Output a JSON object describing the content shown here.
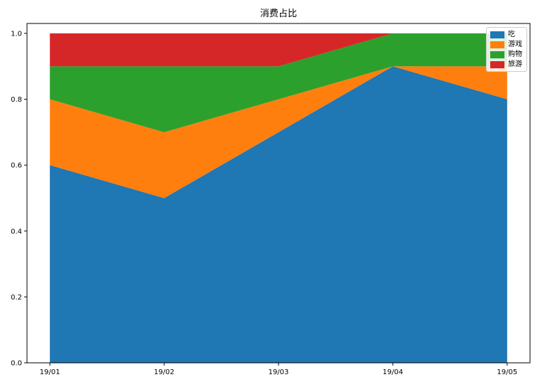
{
  "title": "消费占比",
  "chart_data": {
    "type": "area",
    "stacked": true,
    "title": "消费占比",
    "x": [
      "19/01",
      "19/02",
      "19/03",
      "19/04",
      "19/05"
    ],
    "series": [
      {
        "name": "吃",
        "color": "#1f77b4",
        "values": [
          0.6,
          0.5,
          0.7,
          0.9,
          0.8
        ]
      },
      {
        "name": "游戏",
        "color": "#ff7f0e",
        "values": [
          0.2,
          0.2,
          0.1,
          0.0,
          0.1
        ]
      },
      {
        "name": "购物",
        "color": "#2ca02c",
        "values": [
          0.1,
          0.2,
          0.1,
          0.1,
          0.1
        ]
      },
      {
        "name": "旅游",
        "color": "#d62728",
        "values": [
          0.1,
          0.1,
          0.1,
          0.0,
          0.0
        ]
      }
    ],
    "yticks": [
      "0.0",
      "0.2",
      "0.4",
      "0.6",
      "0.8",
      "1.0"
    ],
    "ylim": [
      0,
      1.03
    ],
    "xlim": [
      -0.2,
      4.2
    ],
    "xlabel": "",
    "ylabel": "",
    "grid": false,
    "legend_position": "upper right",
    "axis_color": "#000000"
  }
}
